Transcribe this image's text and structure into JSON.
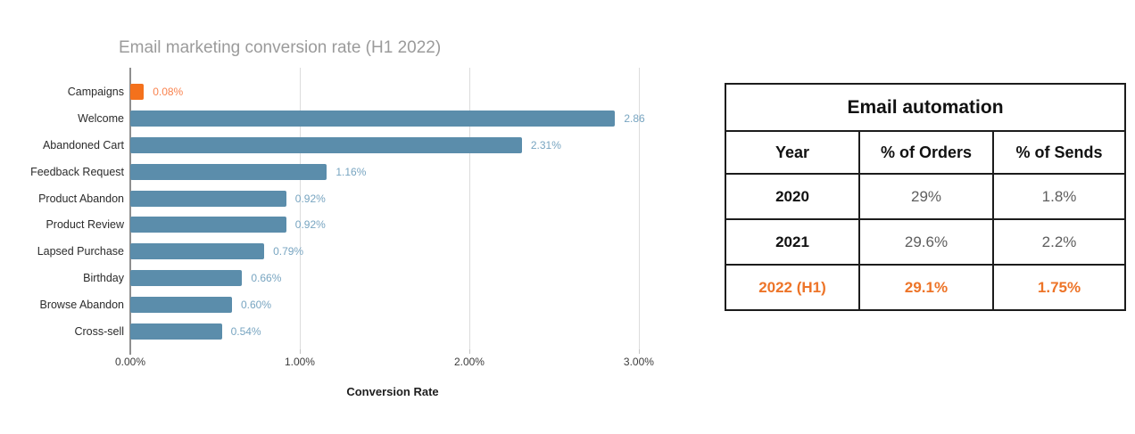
{
  "chart_data": {
    "type": "bar",
    "orientation": "horizontal",
    "title": "Email marketing conversion rate (H1 2022)",
    "xlabel": "Conversion Rate",
    "categories": [
      "Campaigns",
      "Welcome",
      "Abandoned Cart",
      "Feedback Request",
      "Product Abandon",
      "Product Review",
      "Lapsed Purchase",
      "Birthday",
      "Browse Abandon",
      "Cross-sell"
    ],
    "values": [
      0.08,
      2.86,
      2.31,
      1.16,
      0.92,
      0.92,
      0.79,
      0.66,
      0.6,
      0.54
    ],
    "value_labels": [
      "0.08%",
      "2.86",
      "2.31%",
      "1.16%",
      "0.92%",
      "0.92%",
      "0.79%",
      "0.66%",
      "0.60%",
      "0.54%"
    ],
    "x_ticks": [
      {
        "value": 0,
        "label": "0.00%"
      },
      {
        "value": 1,
        "label": "1.00%"
      },
      {
        "value": 2,
        "label": "2.00%"
      },
      {
        "value": 3,
        "label": "3.00%"
      }
    ],
    "xlim": [
      0,
      3.095
    ],
    "grid": "vertical-only",
    "legend": "none",
    "colors": {
      "campaigns_bar": "#F4711C",
      "campaigns_label": "#F9834F",
      "automation_bar": "#5B8DAB",
      "automation_label": "#78A5C1"
    }
  },
  "table": {
    "title": "Email automation",
    "columns": [
      "Year",
      "% of Orders",
      "% of Sends"
    ],
    "rows": [
      {
        "year": "2020",
        "orders": "29%",
        "sends": "1.8%",
        "highlight": false
      },
      {
        "year": "2021",
        "orders": "29.6%",
        "sends": "2.2%",
        "highlight": false
      },
      {
        "year": "2022 (H1)",
        "orders": "29.1%",
        "sends": "1.75%",
        "highlight": true
      }
    ],
    "colors": {
      "highlight": "#ED7428",
      "value_gray": "#5E5E5E",
      "text_black": "#111111",
      "border": "#1C1C1C"
    }
  }
}
